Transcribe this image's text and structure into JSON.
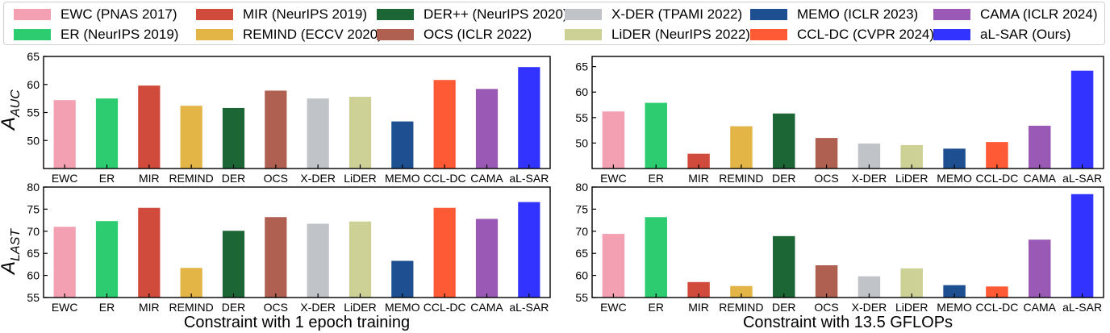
{
  "legend": [
    {
      "label": "EWC (PNAS 2017)",
      "color": "#f2a0b2"
    },
    {
      "label": "ER (NeurIPS 2019)",
      "color": "#2ecc71"
    },
    {
      "label": "MIR (NeurIPS 2019)",
      "color": "#d14b3c"
    },
    {
      "label": "REMIND (ECCV 2020)",
      "color": "#e3b446"
    },
    {
      "label": "DER++ (NeurIPS 2020)",
      "color": "#1c6636"
    },
    {
      "label": "OCS (ICLR 2022)",
      "color": "#b06050"
    },
    {
      "label": "X-DER (TPAMI 2022)",
      "color": "#c0c4c8"
    },
    {
      "label": "LiDER (NeurIPS 2022)",
      "color": "#cdd196"
    },
    {
      "label": "MEMO (ICLR 2023)",
      "color": "#1d4f91"
    },
    {
      "label": "CCL-DC (CVPR 2024)",
      "color": "#ff5a36"
    },
    {
      "label": "CAMA (ICLR 2024)",
      "color": "#9b59b6"
    },
    {
      "label": "aL-SAR (Ours)",
      "color": "#3333ff"
    }
  ],
  "row_labels": {
    "top": {
      "main": "A",
      "sub": "AUC"
    },
    "bottom": {
      "main": "A",
      "sub": "LAST"
    }
  },
  "column_titles": [
    "Constraint with 1 epoch training",
    "Constraint with 13.5 GFLOPs"
  ],
  "chart_data": [
    {
      "type": "bar",
      "panel": "top-left",
      "title": "",
      "ylabel": "A_AUC",
      "xlabel": "",
      "categories": [
        "EWC",
        "ER",
        "MIR",
        "REMIND",
        "DER",
        "OCS",
        "X-DER",
        "LiDER",
        "MEMO",
        "CCL-DC",
        "CAMA",
        "aL-SAR"
      ],
      "values": [
        57.2,
        57.5,
        59.8,
        56.2,
        55.8,
        58.9,
        57.5,
        57.8,
        53.4,
        60.8,
        59.2,
        63.1
      ],
      "ylim": [
        45,
        65
      ],
      "yticks": [
        50,
        55,
        60,
        65
      ]
    },
    {
      "type": "bar",
      "panel": "top-right",
      "title": "",
      "ylabel": "A_AUC",
      "xlabel": "",
      "categories": [
        "EWC",
        "ER",
        "MIR",
        "REMIND",
        "DER",
        "OCS",
        "X-DER",
        "LiDER",
        "MEMO",
        "CCL-DC",
        "CAMA",
        "aL-SAR"
      ],
      "values": [
        56.2,
        57.9,
        47.9,
        53.3,
        55.8,
        51.0,
        49.9,
        49.6,
        48.9,
        50.2,
        53.4,
        64.2
      ],
      "ylim": [
        45,
        67
      ],
      "yticks": [
        50,
        55,
        60,
        65
      ]
    },
    {
      "type": "bar",
      "panel": "bottom-left",
      "title": "",
      "ylabel": "A_LAST",
      "xlabel": "Constraint with 1 epoch training",
      "categories": [
        "EWC",
        "ER",
        "MIR",
        "REMIND",
        "DER",
        "OCS",
        "X-DER",
        "LiDER",
        "MEMO",
        "CCL-DC",
        "CAMA",
        "aL-SAR"
      ],
      "values": [
        71.0,
        72.3,
        75.3,
        61.7,
        70.1,
        73.2,
        71.7,
        72.2,
        63.3,
        75.3,
        72.8,
        76.6
      ],
      "ylim": [
        55,
        80
      ],
      "yticks": [
        55,
        60,
        65,
        70,
        75,
        80
      ]
    },
    {
      "type": "bar",
      "panel": "bottom-right",
      "title": "",
      "ylabel": "A_LAST",
      "xlabel": "Constraint with 13.5 GFLOPs",
      "categories": [
        "EWC",
        "ER",
        "MIR",
        "REMIND",
        "DER",
        "OCS",
        "X-DER",
        "LiDER",
        "MEMO",
        "CCL-DC",
        "CAMA",
        "aL-SAR"
      ],
      "values": [
        69.4,
        73.2,
        58.5,
        57.6,
        68.9,
        62.3,
        59.8,
        61.6,
        57.8,
        57.5,
        68.1,
        78.4
      ],
      "ylim": [
        55,
        80
      ],
      "yticks": [
        55,
        60,
        65,
        70,
        75,
        80
      ]
    }
  ]
}
